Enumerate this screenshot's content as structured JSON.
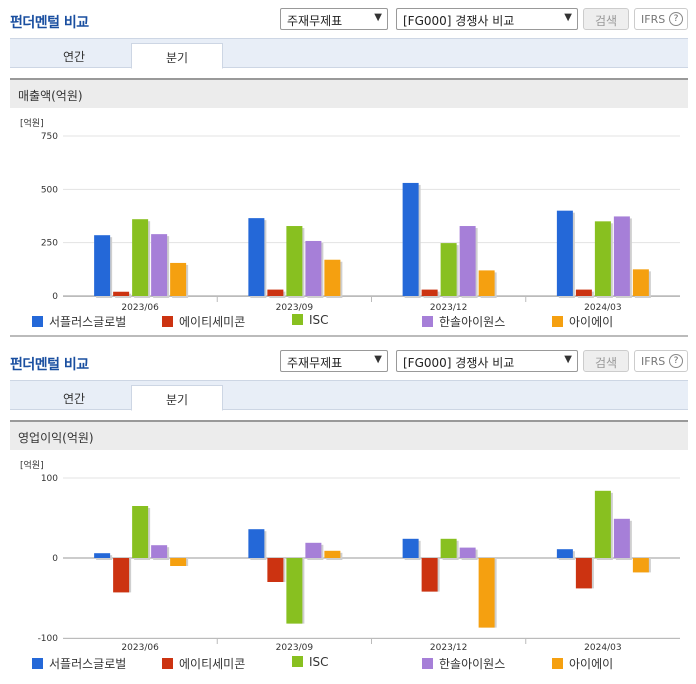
{
  "panels": [
    {
      "title": "펀더멘털 비교",
      "select_type": "주재무제표",
      "select_group": "[FG000] 경쟁사 비교",
      "search_label": "검색",
      "ifrs_label": "IFRS",
      "ifrs_help": "?",
      "tabs": [
        "연간",
        "분기"
      ],
      "active_tab": 1,
      "section_label": "매출액(억원)"
    },
    {
      "title": "펀더멘털 비교",
      "select_type": "주재무제표",
      "select_group": "[FG000] 경쟁사 비교",
      "search_label": "검색",
      "ifrs_label": "IFRS",
      "ifrs_help": "?",
      "tabs": [
        "연간",
        "분기"
      ],
      "active_tab": 1,
      "section_label": "영업이익(억원)"
    }
  ],
  "chart_data": [
    {
      "type": "bar",
      "unit_label": "[억원]",
      "categories": [
        "2023/06",
        "2023/09",
        "2023/12",
        "2024/03"
      ],
      "ylim": [
        0,
        750
      ],
      "yticks": [
        0,
        250,
        500,
        750
      ],
      "grid": true,
      "legend_position": "bottom",
      "series": [
        {
          "name": "서플러스글로벌",
          "color": "#2468d8",
          "values": [
            285,
            365,
            530,
            400
          ]
        },
        {
          "name": "에이티세미콘",
          "color": "#cc3311",
          "values": [
            20,
            30,
            30,
            30
          ]
        },
        {
          "name": "ISC",
          "color": "#88c020",
          "values": [
            360,
            328,
            248,
            350
          ]
        },
        {
          "name": "한솔아이원스",
          "color": "#a67fd8",
          "values": [
            290,
            258,
            328,
            373
          ]
        },
        {
          "name": "아이에이",
          "color": "#f5a010",
          "values": [
            155,
            170,
            120,
            125
          ]
        }
      ]
    },
    {
      "type": "bar",
      "unit_label": "[억원]",
      "categories": [
        "2023/06",
        "2023/09",
        "2023/12",
        "2024/03"
      ],
      "ylim": [
        -100,
        100
      ],
      "yticks": [
        -100,
        0,
        100
      ],
      "grid": true,
      "legend_position": "bottom",
      "series": [
        {
          "name": "서플러스글로벌",
          "color": "#2468d8",
          "values": [
            6,
            36,
            24,
            11
          ]
        },
        {
          "name": "에이티세미콘",
          "color": "#cc3311",
          "values": [
            -43,
            -30,
            -42,
            -38
          ]
        },
        {
          "name": "ISC",
          "color": "#88c020",
          "values": [
            65,
            -82,
            24,
            84
          ]
        },
        {
          "name": "한솔아이원스",
          "color": "#a67fd8",
          "values": [
            16,
            19,
            13,
            49
          ]
        },
        {
          "name": "아이에이",
          "color": "#f5a010",
          "values": [
            -10,
            9,
            -87,
            -18
          ]
        }
      ]
    }
  ]
}
